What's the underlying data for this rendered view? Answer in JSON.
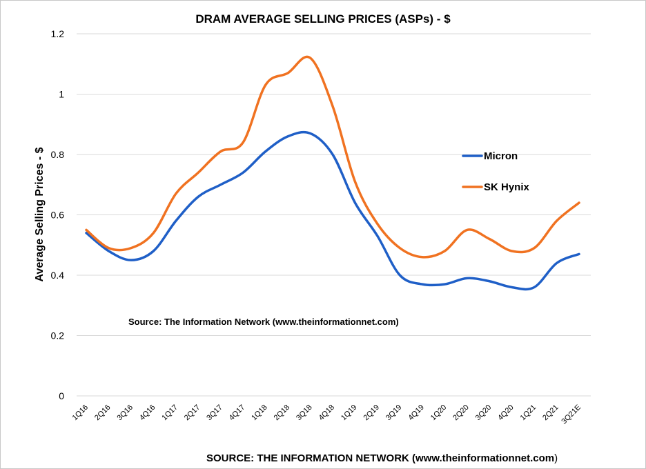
{
  "chart_data": {
    "type": "line",
    "title": "DRAM AVERAGE SELLING PRICES (ASPs) - $",
    "xlabel": "",
    "ylabel": "Average Selling Prices - $",
    "ylim": [
      0,
      1.2
    ],
    "yticks": [
      "0",
      "0.2",
      "0.4",
      "0.6",
      "0.8",
      "1",
      "1.2"
    ],
    "grid": true,
    "legend_position": "right",
    "categories": [
      "1Q16",
      "2Q16",
      "3Q16",
      "4Q16",
      "1Q17",
      "2Q17",
      "3Q17",
      "4Q17",
      "1Q18",
      "2Q18",
      "3Q18",
      "4Q18",
      "1Q19",
      "2Q19",
      "3Q19",
      "4Q19",
      "1Q20",
      "2Q20",
      "3Q20",
      "4Q20",
      "1Q21",
      "2Q21",
      "3Q21E"
    ],
    "series": [
      {
        "name": "Micron",
        "color": "#1f5fc7",
        "values": [
          0.54,
          0.48,
          0.45,
          0.48,
          0.58,
          0.66,
          0.7,
          0.74,
          0.81,
          0.86,
          0.87,
          0.8,
          0.64,
          0.53,
          0.4,
          0.37,
          0.37,
          0.39,
          0.38,
          0.36,
          0.36,
          0.44,
          0.47
        ]
      },
      {
        "name": "SK Hynix",
        "color": "#f07221",
        "values": [
          0.55,
          0.49,
          0.49,
          0.54,
          0.67,
          0.74,
          0.81,
          0.84,
          1.03,
          1.07,
          1.12,
          0.96,
          0.71,
          0.57,
          0.49,
          0.46,
          0.48,
          0.55,
          0.52,
          0.48,
          0.49,
          0.58,
          0.64
        ]
      }
    ],
    "annotations": [
      "Source: The Information Network (www.theinformationnet.com)"
    ]
  },
  "footer": {
    "source_text": "SOURCE: THE INFORMATION NETWORK (www.theinformationnet.com"
  },
  "footer_close_paren": ")"
}
